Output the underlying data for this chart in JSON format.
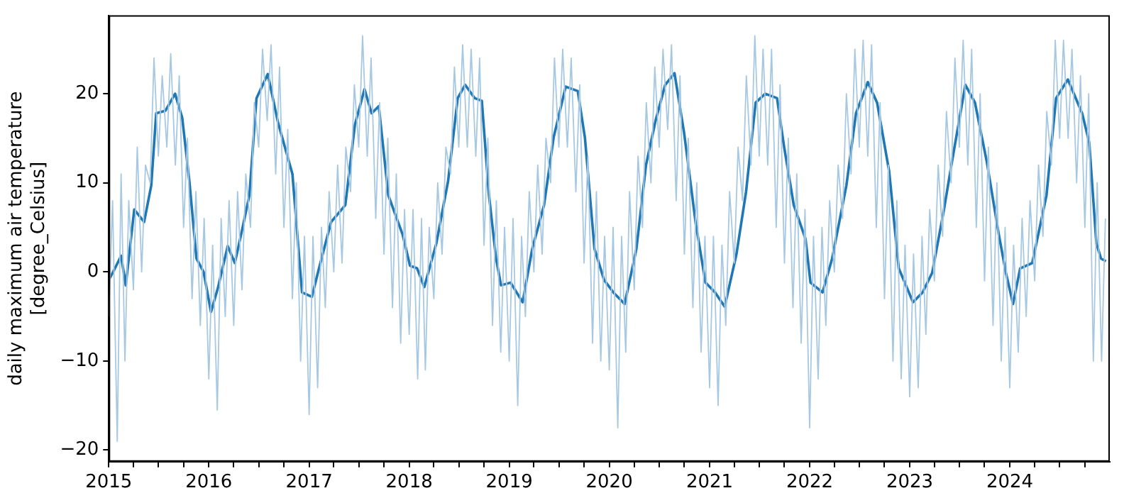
{
  "chart_data": {
    "type": "line",
    "ylabel": "daily maximum air temperature [degree_Celsius]",
    "xlim": [
      "2015-01-01",
      "2024-12-31"
    ],
    "ylim": [
      -21.3,
      28.8
    ],
    "yticks": [
      -20,
      -10,
      0,
      10,
      20
    ],
    "xticks": [
      {
        "value": "2015-01-01",
        "label": "2015"
      },
      {
        "value": "2015-04-01",
        "label": null
      },
      {
        "value": "2015-07-01",
        "label": null
      },
      {
        "value": "2015-10-01",
        "label": null
      },
      {
        "value": "2016-01-01",
        "label": "2016"
      },
      {
        "value": "2016-04-01",
        "label": null
      },
      {
        "value": "2016-07-01",
        "label": null
      },
      {
        "value": "2016-10-01",
        "label": null
      },
      {
        "value": "2017-01-01",
        "label": "2017"
      },
      {
        "value": "2017-04-01",
        "label": null
      },
      {
        "value": "2017-07-01",
        "label": null
      },
      {
        "value": "2017-10-01",
        "label": null
      },
      {
        "value": "2018-01-01",
        "label": "2018"
      },
      {
        "value": "2018-04-01",
        "label": null
      },
      {
        "value": "2018-07-01",
        "label": null
      },
      {
        "value": "2018-10-01",
        "label": null
      },
      {
        "value": "2019-01-01",
        "label": "2019"
      },
      {
        "value": "2019-04-01",
        "label": null
      },
      {
        "value": "2019-07-01",
        "label": null
      },
      {
        "value": "2019-10-01",
        "label": null
      },
      {
        "value": "2020-01-01",
        "label": "2020"
      },
      {
        "value": "2020-04-01",
        "label": null
      },
      {
        "value": "2020-07-01",
        "label": null
      },
      {
        "value": "2020-10-01",
        "label": null
      },
      {
        "value": "2021-01-01",
        "label": "2021"
      },
      {
        "value": "2021-04-01",
        "label": null
      },
      {
        "value": "2021-07-01",
        "label": null
      },
      {
        "value": "2021-10-01",
        "label": null
      },
      {
        "value": "2022-01-01",
        "label": "2022"
      },
      {
        "value": "2022-04-01",
        "label": null
      },
      {
        "value": "2022-07-01",
        "label": null
      },
      {
        "value": "2022-10-01",
        "label": null
      },
      {
        "value": "2023-01-01",
        "label": "2023"
      },
      {
        "value": "2023-04-01",
        "label": null
      },
      {
        "value": "2023-07-01",
        "label": null
      },
      {
        "value": "2023-10-01",
        "label": null
      },
      {
        "value": "2024-01-01",
        "label": "2024"
      },
      {
        "value": "2024-04-01",
        "label": null
      },
      {
        "value": "2024-07-01",
        "label": null
      },
      {
        "value": "2024-10-01",
        "label": null
      }
    ],
    "grid": false,
    "legend": false,
    "marker": "none",
    "line_style": "solid",
    "series": [
      {
        "color": "#a6c8e2",
        "x": [
          "2015-01-01",
          "2015-01-15",
          "2015-02-01",
          "2015-02-15",
          "2015-03-01",
          "2015-03-15",
          "2015-04-01",
          "2015-04-15",
          "2015-05-01",
          "2015-05-15",
          "2015-06-01",
          "2015-06-15",
          "2015-07-01",
          "2015-07-15",
          "2015-08-01",
          "2015-08-15",
          "2015-09-01",
          "2015-09-15",
          "2015-10-01",
          "2015-10-15",
          "2015-11-01",
          "2015-11-15",
          "2015-12-01",
          "2015-12-15",
          "2016-01-01",
          "2016-01-15",
          "2016-02-01",
          "2016-02-15",
          "2016-03-01",
          "2016-03-15",
          "2016-04-01",
          "2016-04-15",
          "2016-05-01",
          "2016-05-15",
          "2016-06-01",
          "2016-06-15",
          "2016-07-01",
          "2016-07-15",
          "2016-08-01",
          "2016-08-15",
          "2016-09-01",
          "2016-09-15",
          "2016-10-01",
          "2016-10-15",
          "2016-11-01",
          "2016-11-15",
          "2016-12-01",
          "2016-12-15",
          "2017-01-01",
          "2017-01-15",
          "2017-02-01",
          "2017-02-15",
          "2017-03-01",
          "2017-03-15",
          "2017-04-01",
          "2017-04-15",
          "2017-05-01",
          "2017-05-15",
          "2017-06-01",
          "2017-06-15",
          "2017-07-01",
          "2017-07-15",
          "2017-08-01",
          "2017-08-15",
          "2017-09-01",
          "2017-09-15",
          "2017-10-01",
          "2017-10-15",
          "2017-11-01",
          "2017-11-15",
          "2017-12-01",
          "2017-12-15",
          "2018-01-01",
          "2018-01-15",
          "2018-02-01",
          "2018-02-15",
          "2018-03-01",
          "2018-03-15",
          "2018-04-01",
          "2018-04-15",
          "2018-05-01",
          "2018-05-15",
          "2018-06-01",
          "2018-06-15",
          "2018-07-01",
          "2018-07-15",
          "2018-08-01",
          "2018-08-15",
          "2018-09-01",
          "2018-09-15",
          "2018-10-01",
          "2018-10-15",
          "2018-11-01",
          "2018-11-15",
          "2018-12-01",
          "2018-12-15",
          "2019-01-01",
          "2019-01-15",
          "2019-02-01",
          "2019-02-15",
          "2019-03-01",
          "2019-03-15",
          "2019-04-01",
          "2019-04-15",
          "2019-05-01",
          "2019-05-15",
          "2019-06-01",
          "2019-06-15",
          "2019-07-01",
          "2019-07-15",
          "2019-08-01",
          "2019-08-15",
          "2019-09-01",
          "2019-09-15",
          "2019-10-01",
          "2019-10-15",
          "2019-11-01",
          "2019-11-15",
          "2019-12-01",
          "2019-12-15",
          "2020-01-01",
          "2020-01-15",
          "2020-02-01",
          "2020-02-15",
          "2020-03-01",
          "2020-03-15",
          "2020-04-01",
          "2020-04-15",
          "2020-05-01",
          "2020-05-15",
          "2020-06-01",
          "2020-06-15",
          "2020-07-01",
          "2020-07-15",
          "2020-08-01",
          "2020-08-15",
          "2020-09-01",
          "2020-09-15",
          "2020-10-01",
          "2020-10-15",
          "2020-11-01",
          "2020-11-15",
          "2020-12-01",
          "2020-12-15",
          "2021-01-01",
          "2021-01-15",
          "2021-02-01",
          "2021-02-15",
          "2021-03-01",
          "2021-03-15",
          "2021-04-01",
          "2021-04-15",
          "2021-05-01",
          "2021-05-15",
          "2021-06-01",
          "2021-06-15",
          "2021-07-01",
          "2021-07-15",
          "2021-08-01",
          "2021-08-15",
          "2021-09-01",
          "2021-09-15",
          "2021-10-01",
          "2021-10-15",
          "2021-11-01",
          "2021-11-15",
          "2021-12-01",
          "2021-12-15",
          "2022-01-01",
          "2022-01-15",
          "2022-02-01",
          "2022-02-15",
          "2022-03-01",
          "2022-03-15",
          "2022-04-01",
          "2022-04-15",
          "2022-05-01",
          "2022-05-15",
          "2022-06-01",
          "2022-06-15",
          "2022-07-01",
          "2022-07-15",
          "2022-08-01",
          "2022-08-15",
          "2022-09-01",
          "2022-09-15",
          "2022-10-01",
          "2022-10-15",
          "2022-11-01",
          "2022-11-15",
          "2022-12-01",
          "2022-12-15",
          "2023-01-01",
          "2023-01-15",
          "2023-02-01",
          "2023-02-15",
          "2023-03-01",
          "2023-03-15",
          "2023-04-01",
          "2023-04-15",
          "2023-05-01",
          "2023-05-15",
          "2023-06-01",
          "2023-06-15",
          "2023-07-01",
          "2023-07-15",
          "2023-08-01",
          "2023-08-15",
          "2023-09-01",
          "2023-09-15",
          "2023-10-01",
          "2023-10-15",
          "2023-11-01",
          "2023-11-15",
          "2023-12-01",
          "2023-12-15",
          "2024-01-01",
          "2024-01-15",
          "2024-02-01",
          "2024-02-15",
          "2024-03-01",
          "2024-03-15",
          "2024-04-01",
          "2024-04-15",
          "2024-05-01",
          "2024-05-15",
          "2024-06-01",
          "2024-06-15",
          "2024-07-01",
          "2024-07-15",
          "2024-08-01",
          "2024-08-15",
          "2024-09-01",
          "2024-09-15",
          "2024-10-01",
          "2024-10-15",
          "2024-11-01",
          "2024-11-15",
          "2024-12-01",
          "2024-12-15"
        ],
        "values": [
          -5,
          8,
          -19,
          11,
          -10,
          8,
          -2,
          14,
          0,
          12,
          10,
          24,
          13,
          22,
          14,
          24.5,
          12,
          22,
          5,
          15,
          -3,
          9,
          -6,
          6,
          -12,
          3,
          -15.5,
          6,
          -5,
          8,
          -6,
          9,
          -2,
          11,
          5,
          19,
          14,
          25,
          17,
          25.5,
          11,
          23,
          5,
          16,
          -3,
          10,
          -10,
          4,
          -16,
          4,
          -13,
          5,
          -4,
          9,
          0,
          12,
          1,
          14,
          9,
          21,
          14,
          26.5,
          13,
          24,
          6,
          19,
          2,
          15,
          -4,
          11,
          -8,
          7,
          -7,
          7,
          -12,
          6,
          -11,
          5,
          -3,
          10,
          2,
          14,
          11,
          23,
          14,
          25.5,
          14,
          25,
          13,
          24,
          3,
          15,
          -6,
          8,
          -9,
          5,
          -10,
          6,
          -15,
          4,
          -5,
          9,
          0,
          12,
          2,
          15,
          10,
          24,
          14,
          25,
          14,
          24,
          9,
          21,
          1,
          13,
          -8,
          9,
          -10,
          4,
          -11,
          5,
          -17.5,
          4,
          -9,
          9,
          -2,
          13,
          5,
          19,
          10,
          23,
          14,
          25,
          16,
          25.5,
          8,
          22,
          2,
          15,
          -4,
          10,
          -9,
          4,
          -13,
          4,
          -15,
          3,
          -6,
          9,
          1,
          14,
          8,
          22,
          12,
          26.5,
          13,
          25,
          12,
          25,
          5,
          21,
          1,
          15,
          -4,
          11,
          -8,
          7,
          -17.5,
          4,
          -12,
          5,
          -6,
          8,
          0,
          12,
          6,
          20,
          11,
          25,
          14,
          26,
          13,
          25.5,
          5,
          19,
          -3,
          12,
          -10,
          8,
          -12,
          3,
          -14,
          2,
          -13,
          4,
          -7,
          7,
          -1,
          12,
          4,
          18,
          10,
          24,
          14,
          26,
          12,
          25,
          5,
          20,
          -1,
          14,
          -6,
          10,
          -10,
          5,
          -13,
          3,
          -9,
          6,
          -5,
          8,
          -1,
          12,
          4,
          18,
          12,
          26,
          15,
          26,
          15,
          25,
          10,
          22,
          5,
          20,
          -10,
          10,
          -10,
          6
        ]
      },
      {
        "color": "#1f77b4",
        "x": [
          "2015-01-01",
          "2015-01-17",
          "2015-02-15",
          "2015-03-04",
          "2015-04-04",
          "2015-05-10",
          "2015-06-05",
          "2015-06-23",
          "2015-07-27",
          "2015-08-31",
          "2015-09-26",
          "2015-10-22",
          "2015-11-17",
          "2015-12-13",
          "2016-01-09",
          "2016-02-04",
          "2016-03-10",
          "2016-04-05",
          "2016-05-02",
          "2016-05-28",
          "2016-06-23",
          "2016-08-03",
          "2016-09-10",
          "2016-11-01",
          "2016-12-06",
          "2017-01-11",
          "2017-02-06",
          "2017-03-22",
          "2017-05-13",
          "2017-06-17",
          "2017-07-22",
          "2017-08-17",
          "2017-09-12",
          "2017-10-17",
          "2017-12-08",
          "2018-01-04",
          "2018-01-30",
          "2018-02-25",
          "2018-04-10",
          "2018-05-23",
          "2018-06-27",
          "2018-07-24",
          "2018-08-28",
          "2018-09-23",
          "2018-10-19",
          "2018-11-14",
          "2018-12-02",
          "2019-01-06",
          "2019-02-19",
          "2019-03-26",
          "2019-05-08",
          "2019-06-12",
          "2019-07-26",
          "2019-09-08",
          "2019-10-04",
          "2019-11-08",
          "2019-12-13",
          "2020-01-16",
          "2020-02-26",
          "2020-04-09",
          "2020-05-14",
          "2020-06-18",
          "2020-07-23",
          "2020-08-26",
          "2020-09-30",
          "2020-11-12",
          "2020-12-17",
          "2021-01-21",
          "2021-02-25",
          "2021-04-09",
          "2021-05-14",
          "2021-06-18",
          "2021-07-23",
          "2021-09-04",
          "2021-09-30",
          "2021-11-04",
          "2021-12-17",
          "2022-01-04",
          "2022-02-17",
          "2022-03-24",
          "2022-05-15",
          "2022-06-19",
          "2022-08-01",
          "2022-09-04",
          "2022-10-18",
          "2022-11-22",
          "2023-01-13",
          "2023-02-17",
          "2023-03-24",
          "2023-05-06",
          "2023-06-01",
          "2023-07-23",
          "2023-08-27",
          "2023-10-09",
          "2023-11-22",
          "2023-12-18",
          "2024-01-13",
          "2024-02-08",
          "2024-03-23",
          "2024-05-14",
          "2024-06-18",
          "2024-07-31",
          "2024-09-21",
          "2024-10-17",
          "2024-11-12",
          "2024-11-29",
          "2024-12-17"
        ],
        "values": [
          -0.9,
          0,
          1.8,
          -1.5,
          7,
          5.6,
          9.7,
          17.8,
          18.1,
          20,
          17.3,
          10.2,
          1.5,
          0,
          -4.5,
          -1.7,
          2.9,
          1,
          4.8,
          8.6,
          19.5,
          22.2,
          16.7,
          11,
          -2.3,
          -2.8,
          0.4,
          5.6,
          7.5,
          16.5,
          20.5,
          17.8,
          18.6,
          8.6,
          4.2,
          0.7,
          0.4,
          -1.7,
          3.2,
          10.2,
          19.5,
          21,
          19.5,
          19.2,
          8.6,
          1.5,
          -1.5,
          -1.2,
          -3.4,
          2.6,
          7.5,
          15.1,
          20.8,
          20.3,
          15.1,
          2.6,
          -0.9,
          -2.3,
          -3.6,
          2.6,
          12,
          17,
          21,
          22.3,
          15.6,
          5.3,
          -1.2,
          -2.3,
          -3.9,
          2,
          9,
          19,
          20,
          19.5,
          14,
          7.5,
          3.7,
          -1.2,
          -2.3,
          1.5,
          9.7,
          17.8,
          21.3,
          19,
          11.3,
          0.4,
          -3.4,
          -2.3,
          -0.1,
          7,
          11.8,
          21,
          19,
          12.4,
          4.2,
          -0.1,
          -3.6,
          0.4,
          1,
          8.6,
          19.5,
          21.6,
          17.8,
          14.5,
          3.2,
          1.5,
          1.2
        ]
      }
    ]
  }
}
